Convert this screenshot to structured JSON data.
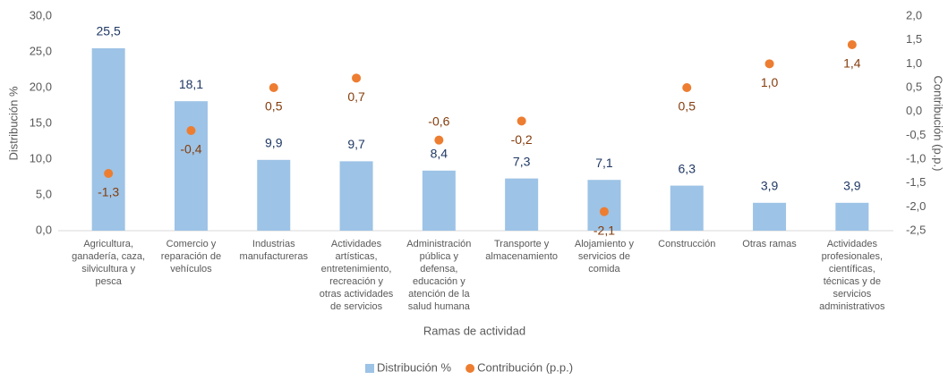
{
  "chart_data": {
    "type": "bar",
    "categories": [
      "Agricultura, ganadería, caza, silvicultura y pesca",
      "Comercio y reparación de vehículos",
      "Industrias manufactureras",
      "Actividades artísticas, entretenimiento, recreación y otras actividades de servicios",
      "Administración pública y defensa, educación y atención de la salud humana",
      "Transporte y almacenamiento",
      "Alojamiento y servicios de comida",
      "Construcción",
      "Otras ramas",
      "Actividades profesionales, científicas, técnicas y de servicios administrativos"
    ],
    "series": [
      {
        "name": "Distribución %",
        "color": "#9dc3e6",
        "type": "bar",
        "values": [
          25.5,
          18.1,
          9.9,
          9.7,
          8.4,
          7.3,
          7.1,
          6.3,
          3.9,
          3.9
        ],
        "value_labels": [
          "25,5",
          "18,1",
          "9,9",
          "9,7",
          "8,4",
          "7,3",
          "7,1",
          "6,3",
          "3,9",
          "3,9"
        ]
      },
      {
        "name": "Contribución (p.p.)",
        "color": "#ed7d31",
        "type": "scatter",
        "axis": "y2",
        "values": [
          -1.3,
          -0.4,
          0.5,
          0.7,
          -0.6,
          -0.2,
          -2.1,
          0.5,
          1.0,
          1.4
        ],
        "value_labels": [
          "-1,3",
          "-0,4",
          "0,5",
          "0,7",
          "-0,6",
          "-0,2",
          "-2,1",
          "0,5",
          "1,0",
          "1,4"
        ]
      }
    ],
    "xlabel": "Ramas de actividad",
    "ylabel": "Distribución %",
    "y2label": "Contribución (p.p.)",
    "ylim": [
      0,
      30
    ],
    "yticks": [
      {
        "value": 0,
        "label": "0,0"
      },
      {
        "value": 5,
        "label": "5,0"
      },
      {
        "value": 10,
        "label": "10,0"
      },
      {
        "value": 15,
        "label": "15,0"
      },
      {
        "value": 20,
        "label": "20,0"
      },
      {
        "value": 25,
        "label": "25,0"
      },
      {
        "value": 30,
        "label": "30,0"
      }
    ],
    "y2lim": [
      -2.5,
      2
    ],
    "y2ticks": [
      {
        "value": -2.5,
        "label": "-2,5"
      },
      {
        "value": -2,
        "label": "-2,0"
      },
      {
        "value": -1.5,
        "label": "-1,5"
      },
      {
        "value": -1,
        "label": "-1,0"
      },
      {
        "value": -0.5,
        "label": "-0,5"
      },
      {
        "value": 0,
        "label": "0,0"
      },
      {
        "value": 0.5,
        "label": "0,5"
      },
      {
        "value": 1,
        "label": "1,0"
      },
      {
        "value": 1.5,
        "label": "1,5"
      },
      {
        "value": 2,
        "label": "2,0"
      }
    ],
    "legend": "bottom"
  }
}
